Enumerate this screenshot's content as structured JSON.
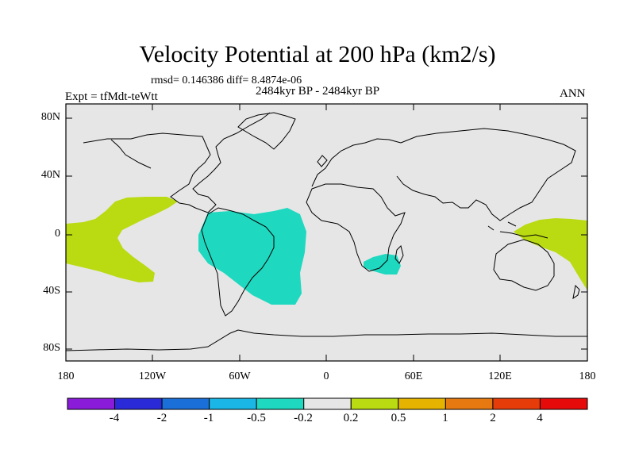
{
  "title": "Velocity Potential at 200 hPa (km2/s)",
  "stats": "rmsd= 0.146386 diff= 8.4874e-06",
  "expt": "Expt = tfMdt-teWtt",
  "period": "2484kyr BP - 2484kyr BP",
  "season": "ANN",
  "axes": {
    "lat_labels": [
      "80N",
      "40N",
      "0",
      "40S",
      "80S"
    ],
    "lon_labels": [
      "180",
      "120W",
      "60W",
      "0",
      "60E",
      "120E",
      "180"
    ]
  },
  "colorbar": {
    "labels": [
      "-4",
      "-2",
      "-1",
      "-0.5",
      "-0.2",
      "0.2",
      "0.5",
      "1",
      "2",
      "4"
    ],
    "colors": [
      "#8a1bd8",
      "#2a2ad8",
      "#1a6fd8",
      "#19b6e6",
      "#1ed8c0",
      "#e6e6e6",
      "#bada12",
      "#e6b400",
      "#e67a10",
      "#e63c0a",
      "#e60a0a"
    ]
  },
  "colors": {
    "ocean": "#e6e6e6",
    "negative_region": "#1ed8c0",
    "positive_region": "#bada12"
  }
}
